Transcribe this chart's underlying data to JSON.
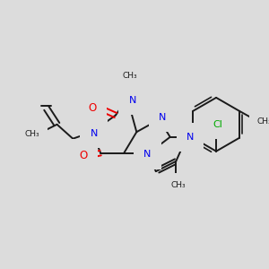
{
  "bg_color": "#dcdcdc",
  "bond_color": "#1a1a1a",
  "N_color": "#0000ee",
  "O_color": "#ee0000",
  "Cl_color": "#00aa00",
  "bond_lw": 1.4,
  "figsize": [
    3.0,
    3.0
  ],
  "dpi": 100,
  "xlim": [
    0,
    300
  ],
  "ylim": [
    0,
    300
  ]
}
